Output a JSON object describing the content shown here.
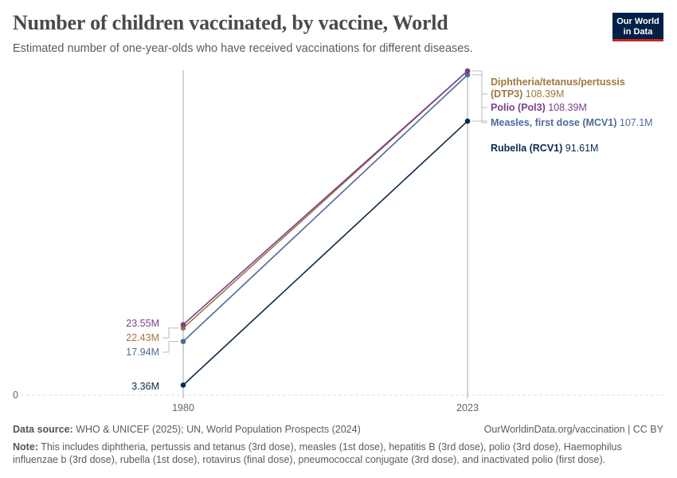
{
  "header": {
    "title": "Number of children vaccinated, by vaccine, World",
    "subtitle": "Estimated number of one-year-olds who have received vaccinations for different diseases.",
    "logo_line1": "Our World",
    "logo_line2": "in Data"
  },
  "chart_data": {
    "type": "line",
    "x": [
      1980,
      2023
    ],
    "x_tick_labels": [
      "1980",
      "2023"
    ],
    "y_tick_labels": [
      "0"
    ],
    "ylim": [
      0,
      110000000
    ],
    "grid": true,
    "legend": "right-end labels",
    "series": [
      {
        "name": "Diphtheria/tetanus/pertussis (DTP3)",
        "name_lines": [
          "Diphtheria/tetanus/pertussis",
          "(DTP3)"
        ],
        "color": "#a2773e",
        "values": [
          22430000,
          108390000
        ],
        "start_label": "22.43M",
        "end_label": "108.39M"
      },
      {
        "name": "Polio (Pol3)",
        "name_lines": [
          "Polio (Pol3)"
        ],
        "color": "#7a3f8c",
        "values": [
          23550000,
          108390000
        ],
        "start_label": "23.55M",
        "end_label": "108.39M"
      },
      {
        "name": "Measles, first dose (MCV1)",
        "name_lines": [
          "Measles, first dose (MCV1)"
        ],
        "color": "#4e6a9a",
        "values": [
          17940000,
          107100000
        ],
        "start_label": "17.94M",
        "end_label": "107.1M"
      },
      {
        "name": "Rubella (RCV1)",
        "name_lines": [
          "Rubella (RCV1)"
        ],
        "color": "#0a2a4e",
        "values": [
          3360000,
          91610000
        ],
        "start_label": "3.36M",
        "end_label": "91.61M"
      }
    ]
  },
  "footer": {
    "source_label": "Data source:",
    "source_text": "WHO & UNICEF (2025); UN, World Population Prospects (2024)",
    "url_text": "OurWorldinData.org/vaccination | CC BY",
    "note_label": "Note:",
    "note_text": "This includes diphtheria, pertussis and tetanus (3rd dose), measles (1st dose), hepatitis B (3rd dose), polio (3rd dose), Haemophilus influenzae b (3rd dose), rubella (1st dose), rotavirus (final dose), pneumococcal conjugate (3rd dose), and inactivated polio (first dose)."
  }
}
